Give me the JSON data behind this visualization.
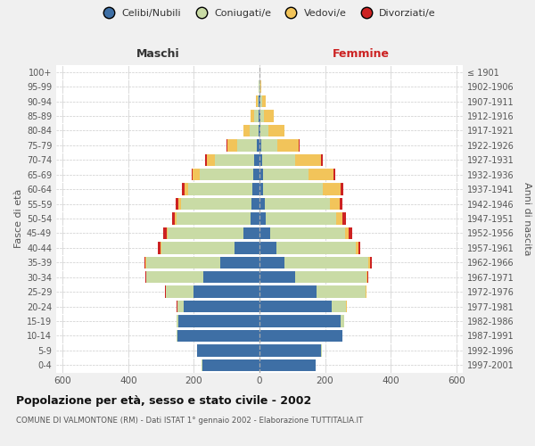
{
  "age_groups": [
    "0-4",
    "5-9",
    "10-14",
    "15-19",
    "20-24",
    "25-29",
    "30-34",
    "35-39",
    "40-44",
    "45-49",
    "50-54",
    "55-59",
    "60-64",
    "65-69",
    "70-74",
    "75-79",
    "80-84",
    "85-89",
    "90-94",
    "95-99",
    "100+"
  ],
  "birth_years": [
    "1997-2001",
    "1992-1996",
    "1987-1991",
    "1982-1986",
    "1977-1981",
    "1972-1976",
    "1967-1971",
    "1962-1966",
    "1957-1961",
    "1952-1956",
    "1947-1951",
    "1942-1946",
    "1937-1941",
    "1932-1936",
    "1927-1931",
    "1922-1926",
    "1917-1921",
    "1912-1916",
    "1907-1911",
    "1902-1906",
    "≤ 1901"
  ],
  "male": {
    "celibi": [
      175,
      190,
      250,
      248,
      230,
      200,
      170,
      120,
      75,
      50,
      28,
      25,
      22,
      18,
      15,
      8,
      4,
      3,
      2,
      1,
      0
    ],
    "coniugati": [
      1,
      1,
      2,
      5,
      20,
      85,
      175,
      225,
      225,
      230,
      225,
      215,
      195,
      165,
      120,
      60,
      25,
      12,
      4,
      1,
      0
    ],
    "vedovi": [
      0,
      0,
      0,
      0,
      1,
      1,
      1,
      2,
      2,
      3,
      5,
      8,
      12,
      20,
      25,
      30,
      20,
      12,
      4,
      1,
      0
    ],
    "divorziati": [
      0,
      0,
      0,
      0,
      1,
      2,
      3,
      5,
      8,
      10,
      8,
      8,
      8,
      5,
      5,
      2,
      0,
      0,
      0,
      0,
      0
    ]
  },
  "female": {
    "nubili": [
      170,
      188,
      252,
      248,
      220,
      175,
      108,
      75,
      52,
      32,
      18,
      15,
      12,
      10,
      8,
      5,
      4,
      3,
      2,
      1,
      0
    ],
    "coniugate": [
      1,
      1,
      2,
      10,
      45,
      148,
      218,
      258,
      242,
      228,
      215,
      200,
      180,
      140,
      100,
      50,
      22,
      10,
      5,
      2,
      0
    ],
    "vedove": [
      0,
      0,
      0,
      0,
      1,
      2,
      3,
      4,
      8,
      12,
      20,
      30,
      55,
      75,
      80,
      65,
      50,
      30,
      12,
      2,
      0
    ],
    "divorziate": [
      0,
      0,
      0,
      0,
      1,
      1,
      3,
      5,
      5,
      10,
      10,
      8,
      8,
      5,
      5,
      2,
      1,
      0,
      0,
      0,
      0
    ]
  },
  "colors": {
    "celibi": "#3e6fa5",
    "coniugati": "#c9dba5",
    "vedovi": "#f2c45a",
    "divorziati": "#cc2222"
  },
  "legend_labels": [
    "Celibi/Nubili",
    "Coniugati/e",
    "Vedovi/e",
    "Divorziati/e"
  ],
  "title": "Popolazione per età, sesso e stato civile - 2002",
  "subtitle": "COMUNE DI VALMONTONE (RM) - Dati ISTAT 1° gennaio 2002 - Elaborazione TUTTITALIA.IT",
  "ylabel_left": "Fasce di età",
  "ylabel_right": "Anni di nascita",
  "xlabel_left": "Maschi",
  "xlabel_right": "Femmine",
  "xlim": 620,
  "bg_color": "#f0f0f0",
  "plot_bg": "#ffffff",
  "grid_color": "#cccccc"
}
